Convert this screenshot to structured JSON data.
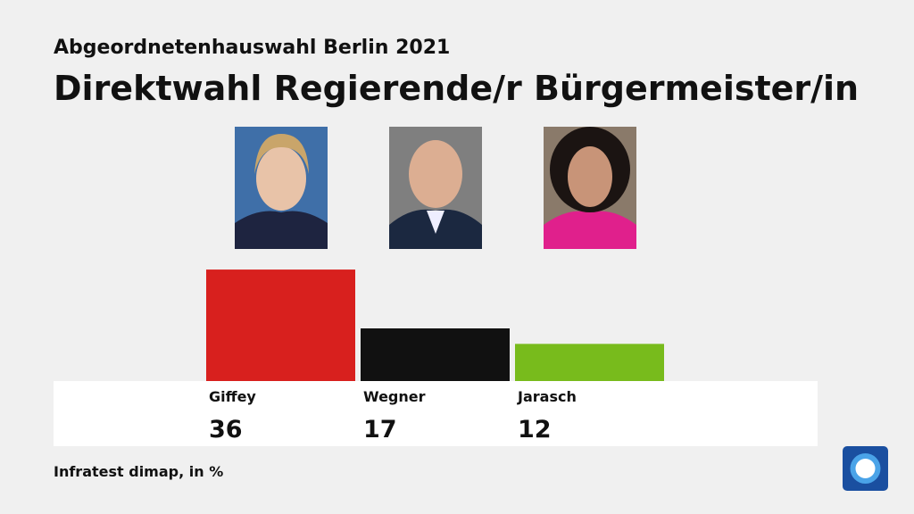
{
  "chart_data": {
    "type": "bar",
    "subtitle": "Abgeordnetenhauswahl Berlin 2021",
    "title": "Direktwahl Regierende/r Bürgermeister/in",
    "categories": [
      "Giffey",
      "Wegner",
      "Jarasch"
    ],
    "values": [
      36,
      17,
      12
    ],
    "colors": [
      "#d8201e",
      "#111111",
      "#78bb1c"
    ],
    "source": "Infratest dimap, in %"
  }
}
